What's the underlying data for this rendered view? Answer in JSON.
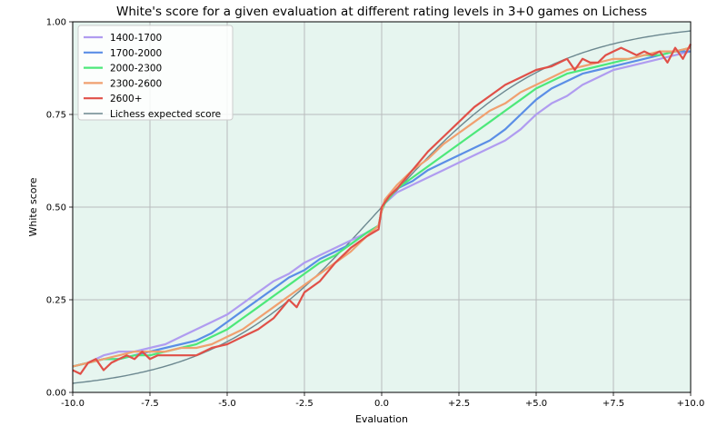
{
  "chart_data": {
    "type": "line",
    "title": "White's score for a given evaluation at different rating levels in 3+0 games on Lichess",
    "xlabel": "Evaluation",
    "ylabel": "White score",
    "xlim": [
      -10,
      10
    ],
    "ylim": [
      0,
      1
    ],
    "grid": true,
    "background": "#e6f5ef",
    "legend_position": "upper-left",
    "x_ticks": [
      {
        "value": -10,
        "label": "-10.0"
      },
      {
        "value": -7.5,
        "label": "-7.5"
      },
      {
        "value": -5,
        "label": "-5.0"
      },
      {
        "value": -2.5,
        "label": "-2.5"
      },
      {
        "value": 0,
        "label": "0.0"
      },
      {
        "value": 2.5,
        "label": "+2.5"
      },
      {
        "value": 5,
        "label": "+5.0"
      },
      {
        "value": 7.5,
        "label": "+7.5"
      },
      {
        "value": 10,
        "label": "+10.0"
      }
    ],
    "y_ticks": [
      {
        "value": 0,
        "label": "0.00"
      },
      {
        "value": 0.25,
        "label": "0.25"
      },
      {
        "value": 0.5,
        "label": "0.50"
      },
      {
        "value": 0.75,
        "label": "0.75"
      },
      {
        "value": 1,
        "label": "1.00"
      }
    ],
    "series": [
      {
        "name": "1400-1700",
        "color": "#b09cf0",
        "x": [
          -10,
          -9.5,
          -9,
          -8.5,
          -8,
          -7.5,
          -7,
          -6.5,
          -6,
          -5.5,
          -5,
          -4.5,
          -4,
          -3.5,
          -3,
          -2.5,
          -2,
          -1.5,
          -1,
          -0.5,
          -0.1,
          0,
          0.1,
          0.5,
          1,
          1.5,
          2,
          2.5,
          3,
          3.5,
          4,
          4.5,
          5,
          5.5,
          6,
          6.5,
          7,
          7.5,
          8,
          8.5,
          9,
          9.5,
          10
        ],
        "y": [
          0.07,
          0.08,
          0.1,
          0.11,
          0.11,
          0.12,
          0.13,
          0.15,
          0.17,
          0.19,
          0.21,
          0.24,
          0.27,
          0.3,
          0.32,
          0.35,
          0.37,
          0.39,
          0.41,
          0.43,
          0.45,
          0.49,
          0.51,
          0.54,
          0.56,
          0.58,
          0.6,
          0.62,
          0.64,
          0.66,
          0.68,
          0.71,
          0.75,
          0.78,
          0.8,
          0.83,
          0.85,
          0.87,
          0.88,
          0.89,
          0.9,
          0.91,
          0.92
        ]
      },
      {
        "name": "1700-2000",
        "color": "#5b8ee6",
        "x": [
          -10,
          -9.5,
          -9,
          -8.5,
          -8,
          -7.5,
          -7,
          -6.5,
          -6,
          -5.5,
          -5,
          -4.5,
          -4,
          -3.5,
          -3,
          -2.5,
          -2,
          -1.5,
          -1,
          -0.5,
          -0.1,
          0,
          0.1,
          0.5,
          1,
          1.5,
          2,
          2.5,
          3,
          3.5,
          4,
          4.5,
          5,
          5.5,
          6,
          6.5,
          7,
          7.5,
          8,
          8.5,
          9,
          9.5,
          10
        ],
        "y": [
          0.07,
          0.08,
          0.09,
          0.09,
          0.1,
          0.11,
          0.12,
          0.13,
          0.14,
          0.16,
          0.19,
          0.22,
          0.25,
          0.28,
          0.31,
          0.33,
          0.36,
          0.38,
          0.4,
          0.43,
          0.45,
          0.49,
          0.51,
          0.55,
          0.57,
          0.6,
          0.62,
          0.64,
          0.66,
          0.68,
          0.71,
          0.75,
          0.79,
          0.82,
          0.84,
          0.86,
          0.87,
          0.88,
          0.89,
          0.9,
          0.91,
          0.92,
          0.92
        ]
      },
      {
        "name": "2000-2300",
        "color": "#4de87a",
        "x": [
          -10,
          -9.5,
          -9,
          -8.5,
          -8,
          -7.5,
          -7,
          -6.5,
          -6,
          -5.5,
          -5,
          -4.5,
          -4,
          -3.5,
          -3,
          -2.5,
          -2,
          -1.5,
          -1,
          -0.5,
          -0.1,
          0,
          0.1,
          0.5,
          1,
          1.5,
          2,
          2.5,
          3,
          3.5,
          4,
          4.5,
          5,
          5.5,
          6,
          6.5,
          7,
          7.5,
          8,
          8.5,
          9,
          9.5,
          10
        ],
        "y": [
          0.07,
          0.08,
          0.09,
          0.09,
          0.1,
          0.1,
          0.11,
          0.12,
          0.13,
          0.15,
          0.17,
          0.2,
          0.23,
          0.26,
          0.29,
          0.32,
          0.35,
          0.37,
          0.4,
          0.43,
          0.45,
          0.49,
          0.51,
          0.55,
          0.58,
          0.61,
          0.64,
          0.67,
          0.7,
          0.73,
          0.76,
          0.79,
          0.82,
          0.84,
          0.86,
          0.87,
          0.88,
          0.89,
          0.9,
          0.91,
          0.91,
          0.92,
          0.93
        ]
      },
      {
        "name": "2300-2600",
        "color": "#f0a070",
        "x": [
          -10,
          -9.5,
          -9,
          -8.5,
          -8,
          -7.5,
          -7,
          -6.5,
          -6,
          -5.5,
          -5,
          -4.5,
          -4,
          -3.5,
          -3,
          -2.5,
          -2,
          -1.5,
          -1,
          -0.5,
          -0.1,
          0,
          0.1,
          0.5,
          1,
          1.5,
          2,
          2.5,
          3,
          3.5,
          4,
          4.5,
          5,
          5.5,
          6,
          6.5,
          7,
          7.5,
          8,
          8.5,
          9,
          9.5,
          10
        ],
        "y": [
          0.07,
          0.08,
          0.09,
          0.1,
          0.11,
          0.11,
          0.11,
          0.12,
          0.12,
          0.13,
          0.15,
          0.17,
          0.2,
          0.23,
          0.26,
          0.29,
          0.32,
          0.35,
          0.38,
          0.42,
          0.45,
          0.49,
          0.52,
          0.56,
          0.6,
          0.63,
          0.67,
          0.7,
          0.73,
          0.76,
          0.78,
          0.81,
          0.83,
          0.85,
          0.87,
          0.88,
          0.89,
          0.9,
          0.9,
          0.91,
          0.92,
          0.92,
          0.93
        ]
      },
      {
        "name": "2600+",
        "color": "#e05048",
        "x": [
          -10,
          -9.75,
          -9.5,
          -9.25,
          -9,
          -8.75,
          -8.5,
          -8.25,
          -8,
          -7.75,
          -7.5,
          -7.25,
          -7,
          -6.5,
          -6,
          -5.5,
          -5,
          -4.5,
          -4,
          -3.5,
          -3,
          -2.75,
          -2.5,
          -2,
          -1.5,
          -1,
          -0.5,
          -0.1,
          0,
          0.25,
          0.5,
          1,
          1.5,
          2,
          2.5,
          3,
          3.5,
          4,
          4.5,
          5,
          5.5,
          6,
          6.25,
          6.5,
          6.75,
          7,
          7.25,
          7.5,
          7.75,
          8,
          8.25,
          8.5,
          8.75,
          9,
          9.25,
          9.5,
          9.75,
          10
        ],
        "y": [
          0.06,
          0.05,
          0.08,
          0.09,
          0.06,
          0.08,
          0.09,
          0.1,
          0.09,
          0.11,
          0.09,
          0.1,
          0.1,
          0.1,
          0.1,
          0.12,
          0.13,
          0.15,
          0.17,
          0.2,
          0.25,
          0.23,
          0.27,
          0.3,
          0.35,
          0.39,
          0.42,
          0.44,
          0.5,
          0.53,
          0.55,
          0.6,
          0.65,
          0.69,
          0.73,
          0.77,
          0.8,
          0.83,
          0.85,
          0.87,
          0.88,
          0.9,
          0.87,
          0.9,
          0.89,
          0.89,
          0.91,
          0.92,
          0.93,
          0.92,
          0.91,
          0.92,
          0.91,
          0.92,
          0.89,
          0.93,
          0.9,
          0.94
        ]
      },
      {
        "name": "Lichess expected score",
        "color": "#6c8890",
        "function": "logistic",
        "coefficient": 0.368208
      }
    ]
  }
}
